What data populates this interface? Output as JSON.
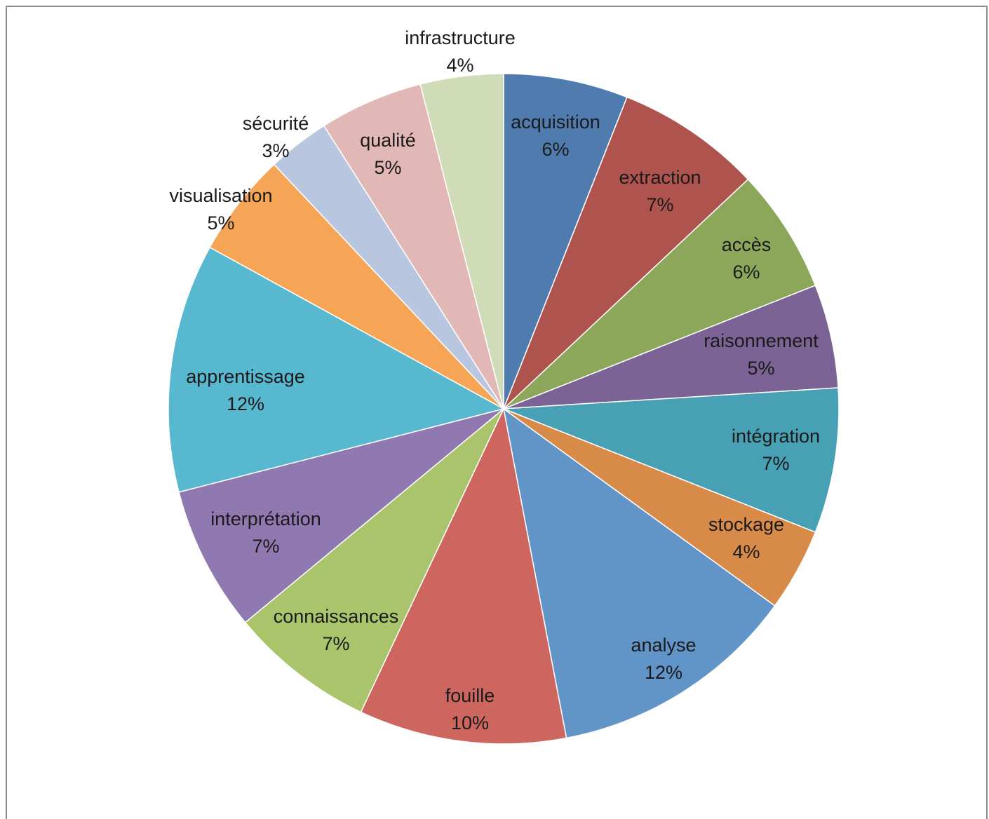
{
  "chart_data": {
    "type": "pie",
    "start": "top",
    "direction": "clockwise",
    "legend": "none",
    "slices": [
      {
        "label": "acquisition",
        "value": 6,
        "value_label": "6%",
        "color": "#4F7BAE"
      },
      {
        "label": "extraction",
        "value": 7,
        "value_label": "7%",
        "color": "#AF534E"
      },
      {
        "label": "accès",
        "value": 6,
        "value_label": "6%",
        "color": "#8DA75A"
      },
      {
        "label": "raisonnement",
        "value": 5,
        "value_label": "5%",
        "color": "#7B6495"
      },
      {
        "label": "intégration",
        "value": 7,
        "value_label": "7%",
        "color": "#48A0B4"
      },
      {
        "label": "stockage",
        "value": 4,
        "value_label": "4%",
        "color": "#D88B48"
      },
      {
        "label": "analyse",
        "value": 12,
        "value_label": "12%",
        "color": "#6195C8"
      },
      {
        "label": "fouille",
        "value": 10,
        "value_label": "10%",
        "color": "#CE6660"
      },
      {
        "label": "connaissances",
        "value": 7,
        "value_label": "7%",
        "color": "#AAC46C"
      },
      {
        "label": "interprétation",
        "value": 7,
        "value_label": "7%",
        "color": "#9079B0"
      },
      {
        "label": "apprentissage",
        "value": 12,
        "value_label": "12%",
        "color": "#58B8CF"
      },
      {
        "label": "visualisation",
        "value": 5,
        "value_label": "5%",
        "color": "#F6A556"
      },
      {
        "label": "sécurité",
        "value": 3,
        "value_label": "3%",
        "color": "#B8C7DF"
      },
      {
        "label": "qualité",
        "value": 5,
        "value_label": "5%",
        "color": "#E2B8B6"
      },
      {
        "label": "infrastructure",
        "value": 4,
        "value_label": "4%",
        "color": "#D0DCB8"
      }
    ]
  }
}
